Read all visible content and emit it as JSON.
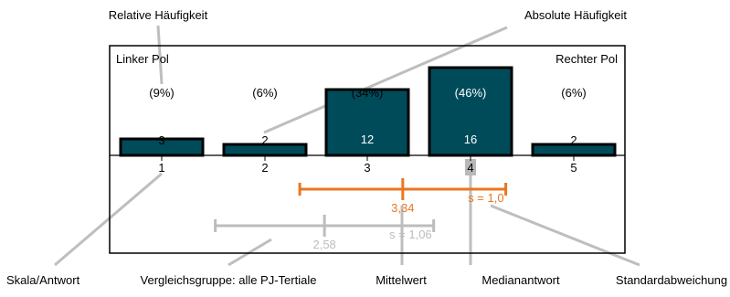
{
  "annotations": {
    "relative_freq": "Relative Häufigkeit",
    "absolute_freq": "Absolute Häufigkeit",
    "scale_answer": "Skala/Antwort",
    "comparison_group": "Vergleichsgruppe: alle PJ-Tertiale",
    "mean": "Mittelwert",
    "median": "Medianantwort",
    "std_dev": "Standardabweichung"
  },
  "chart_frame": {
    "left_pole": "Linker Pol",
    "right_pole": "Rechter Pol"
  },
  "chart_data": {
    "type": "bar",
    "categories": [
      "1",
      "2",
      "3",
      "4",
      "5"
    ],
    "values": [
      3,
      2,
      12,
      16,
      2
    ],
    "value_labels": [
      "3",
      "2",
      "12",
      "16",
      "2"
    ],
    "percent_labels": [
      "(9%)",
      "(6%)",
      "(34%)",
      "(46%)",
      "(6%)"
    ],
    "ylim": [
      0,
      16
    ],
    "bar_color": "#004b5a",
    "median_category": "4",
    "mean": {
      "value": 3.34,
      "label": "3,34",
      "sd": 1.0,
      "sd_label": "s = 1,0",
      "color": "#e87722"
    },
    "comparison": {
      "value": 2.58,
      "label": "2,58",
      "sd": 1.06,
      "sd_label": "s = 1,06",
      "color": "#bcbcbc"
    }
  }
}
